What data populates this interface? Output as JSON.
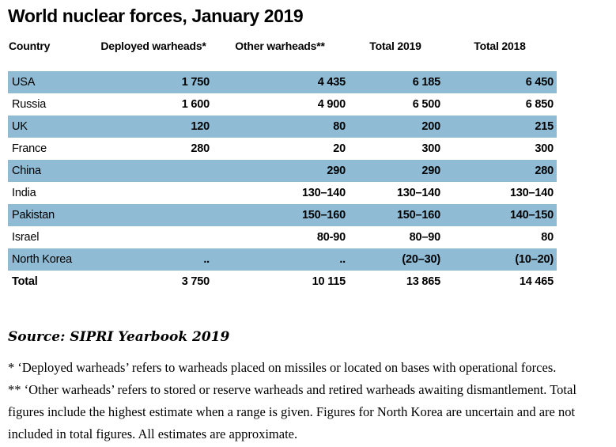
{
  "colors": {
    "row_shade": "#8FBCD4",
    "text": "#000000",
    "background": "#FFFFFF"
  },
  "chart_data": {
    "type": "table",
    "title": "World nuclear forces, January 2019",
    "columns": [
      "Country",
      "Deployed warheads*",
      "Other warheads**",
      "Total 2019",
      "Total 2018"
    ],
    "rows": [
      {
        "country": "USA",
        "deployed": "1 750",
        "other": "4 435",
        "total_2019": "6 185",
        "total_2018": "6 450"
      },
      {
        "country": "Russia",
        "deployed": "1 600",
        "other": "4 900",
        "total_2019": "6 500",
        "total_2018": "6 850"
      },
      {
        "country": "UK",
        "deployed": "120",
        "other": "80",
        "total_2019": "200",
        "total_2018": "215"
      },
      {
        "country": "France",
        "deployed": "280",
        "other": "20",
        "total_2019": "300",
        "total_2018": "300"
      },
      {
        "country": "China",
        "deployed": "",
        "other": "290",
        "total_2019": "290",
        "total_2018": "280"
      },
      {
        "country": "India",
        "deployed": "",
        "other": "130–140",
        "total_2019": "130–140",
        "total_2018": "130–140"
      },
      {
        "country": "Pakistan",
        "deployed": "",
        "other": "150–160",
        "total_2019": "150–160",
        "total_2018": "140–150"
      },
      {
        "country": "Israel",
        "deployed": "",
        "other": "80-90",
        "total_2019": "80–90",
        "total_2018": "80"
      },
      {
        "country": "North Korea",
        "deployed": "..",
        "other": "..",
        "total_2019": "(20–30)",
        "total_2018": "(10–20)"
      },
      {
        "country": "Total",
        "deployed": "3 750",
        "other": "10 115",
        "total_2019": "13 865",
        "total_2018": "14 465"
      }
    ],
    "shaded_rows": [
      "USA",
      "UK",
      "China",
      "Pakistan",
      "North Korea"
    ],
    "source": "Source: SIPRI Yearbook 2019",
    "footnotes": [
      "* ‘Deployed warheads’ refers to warheads placed on missiles or located on bases with operational forces.",
      "** ‘Other warheads’ refers to stored or reserve warheads and retired warheads awaiting dismantlement. Total figures include the highest estimate when a range is given. Figures for North Korea are uncertain and are not included in total figures. All estimates are approximate."
    ]
  }
}
